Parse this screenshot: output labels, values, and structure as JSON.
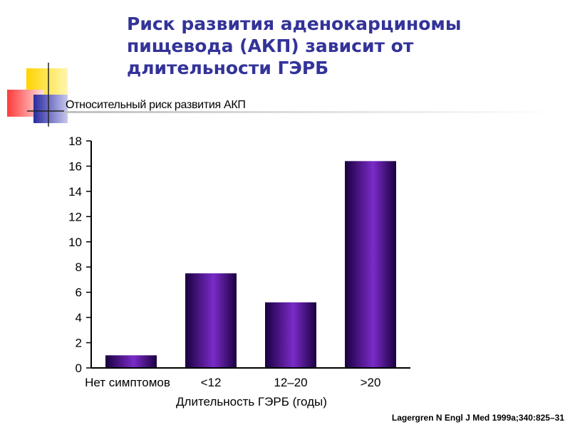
{
  "slide": {
    "title": "Риск развития аденокарциномы пищевода (АКП) зависит от длительности ГЭРБ",
    "subtitle": "Относительный риск развития АКП",
    "citation": "Lagergren N Engl J Med 1999a;340:825–31"
  },
  "colors": {
    "title": "#333399",
    "bar_dark": "#1a0040",
    "bar_mid": "#5a0fa8",
    "bar_light": "#7a2bc8"
  },
  "chart_data": {
    "type": "bar",
    "categories": [
      "Нет симптомов",
      "<12",
      "12–20",
      ">20"
    ],
    "values": [
      1.0,
      7.5,
      5.2,
      16.4
    ],
    "xlabel": "Длительность ГЭРБ (годы)",
    "ylabel": "",
    "ylim": [
      0,
      18
    ],
    "yticks": [
      0,
      2,
      4,
      6,
      8,
      10,
      12,
      14,
      16,
      18
    ],
    "grid": false
  }
}
